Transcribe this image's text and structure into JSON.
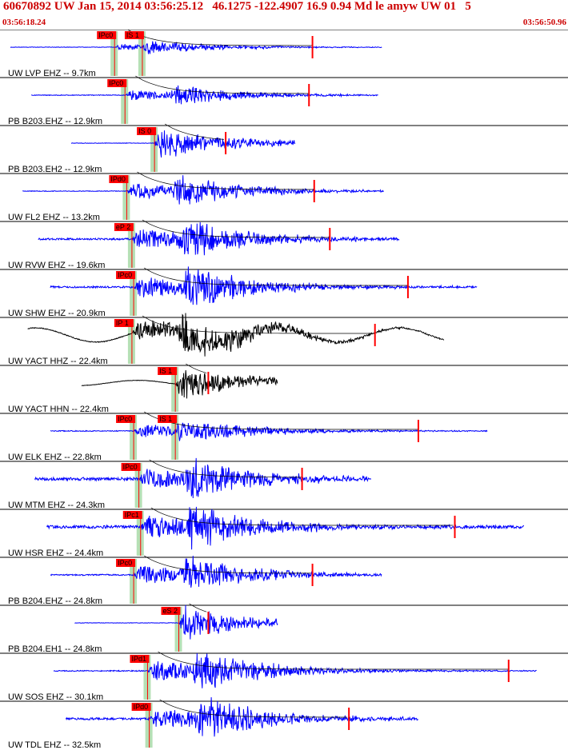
{
  "header": {
    "title": "60670892 UW Jan 15, 2014 03:56:25.12   46.1275 -122.4907 16.9 0.94 Md le amyw UW 01   5",
    "start_time": "03:56:18.24",
    "end_time": "03:56:50.96"
  },
  "colors": {
    "header_text": "#cc0000",
    "trace_z": "#0000ff",
    "trace_broadband": "#000000",
    "pick_flag": "#ff0000",
    "pick_window": "#b5e0b5",
    "coda_fit": "#cc0000"
  },
  "chart_data": {
    "type": "line",
    "x_unit": "seconds",
    "xlim": [
      0,
      32.72
    ],
    "stations": [
      {
        "label": "UW LVP EHZ -- 9.7km",
        "trace_color": "#0000ff",
        "amp": 0.14,
        "picks": [
          {
            "label": "IPc0",
            "t": 6.6
          },
          {
            "label": "IS 1",
            "t": 8.2
          }
        ],
        "coda_end": 18.0,
        "noise": 0.01,
        "long_period": 0
      },
      {
        "label": "PB B203.EHZ -- 12.9km",
        "trace_color": "#0000ff",
        "amp": 0.22,
        "picks": [
          {
            "label": "IPc0",
            "t": 7.2
          }
        ],
        "coda_end": 17.8,
        "noise": 0.015,
        "long_period": 0
      },
      {
        "label": "PB B203.EH2 -- 12.9km",
        "trace_color": "#0000ff",
        "amp": 0.3,
        "picks": [
          {
            "label": "IS 0",
            "t": 8.9
          }
        ],
        "coda_end": 13.0,
        "noise": 0.01,
        "long_period": 0
      },
      {
        "label": "UW FL2 EHZ -- 13.2km",
        "trace_color": "#0000ff",
        "amp": 0.35,
        "picks": [
          {
            "label": "IPd0",
            "t": 7.3
          }
        ],
        "coda_end": 18.1,
        "noise": 0.015,
        "long_period": 0
      },
      {
        "label": "UW RVW EHZ -- 19.6km",
        "trace_color": "#0000ff",
        "amp": 0.45,
        "picks": [
          {
            "label": "eP 2",
            "t": 7.6
          }
        ],
        "coda_end": 19.0,
        "noise": 0.04,
        "long_period": 0
      },
      {
        "label": "UW SHW EHZ -- 20.9km",
        "trace_color": "#0000ff",
        "amp": 0.48,
        "picks": [
          {
            "label": "IPc0",
            "t": 7.7
          }
        ],
        "coda_end": 23.5,
        "noise": 0.04,
        "long_period": 0
      },
      {
        "label": "UW YACT HHZ -- 22.4km",
        "trace_color": "#000000",
        "amp": 0.45,
        "picks": [
          {
            "label": "IP 1",
            "t": 7.6
          }
        ],
        "coda_end": 21.6,
        "noise": 0.02,
        "long_period": 0.16
      },
      {
        "label": "UW YACT HHN -- 22.4km",
        "trace_color": "#000000",
        "amp": 0.3,
        "picks": [
          {
            "label": "IS 1",
            "t": 10.1
          }
        ],
        "coda_end": 12.0,
        "noise": 0.01,
        "long_period": 0.06
      },
      {
        "label": "UW ELK EHZ -- 22.8km",
        "trace_color": "#0000ff",
        "amp": 0.3,
        "picks": [
          {
            "label": "IPc0",
            "t": 7.7
          },
          {
            "label": "IS 1",
            "t": 10.1
          }
        ],
        "coda_end": 24.1,
        "noise": 0.02,
        "long_period": 0
      },
      {
        "label": "UW MTM EHZ -- 24.3km",
        "trace_color": "#0000ff",
        "amp": 0.45,
        "picks": [
          {
            "label": "IPc0",
            "t": 8.0
          }
        ],
        "coda_end": 17.4,
        "noise": 0.07,
        "long_period": 0
      },
      {
        "label": "UW HSR EHZ -- 24.4km",
        "trace_color": "#0000ff",
        "amp": 0.48,
        "picks": [
          {
            "label": "IPc1",
            "t": 8.1
          }
        ],
        "coda_end": 26.2,
        "noise": 0.07,
        "long_period": 0
      },
      {
        "label": "PB B204.EHZ -- 24.8km",
        "trace_color": "#0000ff",
        "amp": 0.42,
        "picks": [
          {
            "label": "IPc0",
            "t": 7.7
          }
        ],
        "coda_end": 18.0,
        "noise": 0.03,
        "long_period": 0
      },
      {
        "label": "PB B204.EH1 -- 24.8km",
        "trace_color": "#0000ff",
        "amp": 0.3,
        "picks": [
          {
            "label": "eS 2",
            "t": 10.3
          }
        ],
        "coda_end": 12.0,
        "noise": 0.01,
        "long_period": 0
      },
      {
        "label": "UW SOS EHZ -- 30.1km",
        "trace_color": "#0000ff",
        "amp": 0.45,
        "picks": [
          {
            "label": "IPd1",
            "t": 8.5
          }
        ],
        "coda_end": 29.3,
        "noise": 0.025,
        "long_period": 0
      },
      {
        "label": "UW TDL EHZ -- 32.5km",
        "trace_color": "#0000ff",
        "amp": 0.48,
        "picks": [
          {
            "label": "IPd0",
            "t": 8.6
          }
        ],
        "coda_end": 20.1,
        "noise": 0.05,
        "long_period": 0
      }
    ]
  }
}
